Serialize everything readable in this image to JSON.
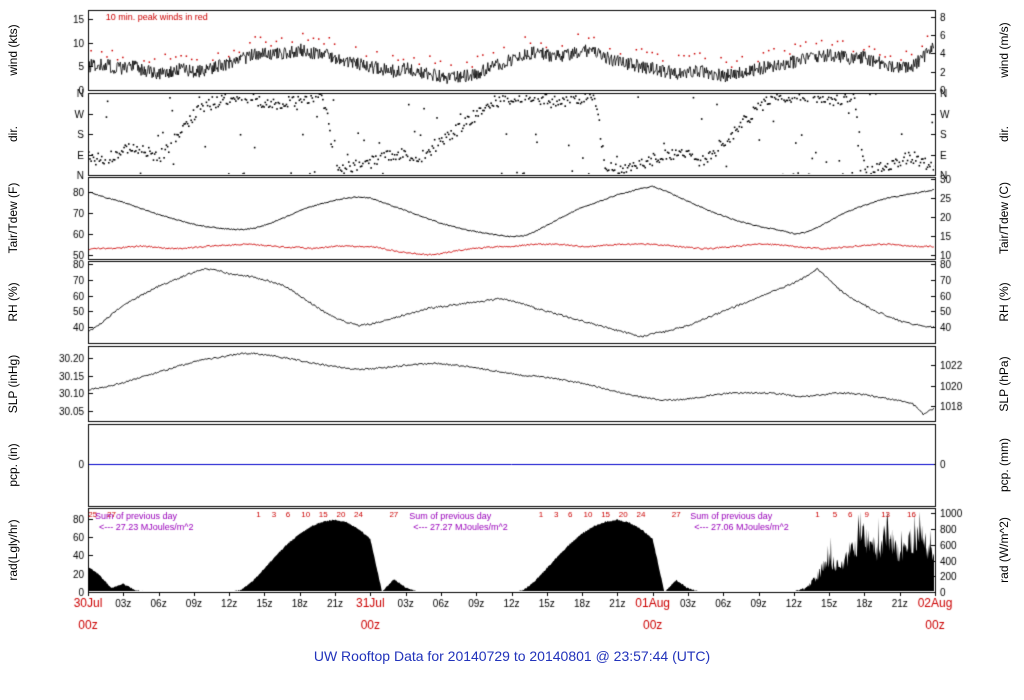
{
  "title": "UW Rooftop Data for 20140729  to  20140801 @ 23:57:44  (UTC)",
  "chart_data": {
    "type": "line",
    "x_unit": "hours since 30Jul 00z (UTC)",
    "x_range_hours": [
      0,
      72
    ],
    "hour_tick_labels": [
      "03z",
      "06z",
      "09z",
      "12z",
      "15z",
      "18z",
      "21z"
    ],
    "date_labels": [
      {
        "t": 0,
        "date": "30Jul",
        "z": "00z"
      },
      {
        "t": 24,
        "date": "31Jul",
        "z": "00z"
      },
      {
        "t": 48,
        "date": "01Aug",
        "z": "00z"
      },
      {
        "t": 72,
        "date": "02Aug",
        "z": "00z"
      }
    ],
    "panels": [
      {
        "id": "wind",
        "left_label": "wind (kts)",
        "right_label": "wind (m/s)",
        "range": [
          0,
          17
        ],
        "left_ticks": [
          {
            "v": 0,
            "label": "0"
          },
          {
            "v": 5,
            "label": "5"
          },
          {
            "v": 10,
            "label": "10"
          },
          {
            "v": 15,
            "label": "15"
          }
        ],
        "right_ticks": [
          {
            "v": 0,
            "label": "0"
          },
          {
            "v": 3.89,
            "label": "2"
          },
          {
            "v": 7.78,
            "label": "4"
          },
          {
            "v": 11.66,
            "label": "6"
          },
          {
            "v": 15.55,
            "label": "8"
          }
        ]
      },
      {
        "id": "dir",
        "left_label": "dir.",
        "right_label": "dir.",
        "range": [
          0,
          360
        ],
        "left_ticks": [
          {
            "v": 0,
            "label": "N"
          },
          {
            "v": 90,
            "label": "E"
          },
          {
            "v": 180,
            "label": "S"
          },
          {
            "v": 270,
            "label": "W"
          },
          {
            "v": 360,
            "label": "N"
          }
        ],
        "right_ticks": [
          {
            "v": 0,
            "label": "N"
          },
          {
            "v": 90,
            "label": "E"
          },
          {
            "v": 180,
            "label": "S"
          },
          {
            "v": 270,
            "label": "W"
          },
          {
            "v": 360,
            "label": "N"
          }
        ]
      },
      {
        "id": "temp",
        "left_label": "Tair/Tdew (F)",
        "right_label": "Tair/Tdew (C)",
        "range": [
          48,
          87
        ],
        "left_ticks": [
          {
            "v": 50,
            "label": "50"
          },
          {
            "v": 60,
            "label": "60"
          },
          {
            "v": 70,
            "label": "70"
          },
          {
            "v": 80,
            "label": "80"
          }
        ],
        "right_ticks": [
          {
            "v": 50,
            "label": "10"
          },
          {
            "v": 59,
            "label": "15"
          },
          {
            "v": 68,
            "label": "20"
          },
          {
            "v": 77,
            "label": "25"
          },
          {
            "v": 86,
            "label": "30"
          }
        ]
      },
      {
        "id": "rh",
        "left_label": "RH (%)",
        "right_label": "RH (%)",
        "range": [
          30,
          82
        ],
        "left_ticks": [
          {
            "v": 40,
            "label": "40"
          },
          {
            "v": 50,
            "label": "50"
          },
          {
            "v": 60,
            "label": "60"
          },
          {
            "v": 70,
            "label": "70"
          },
          {
            "v": 80,
            "label": "80"
          }
        ],
        "right_ticks": [
          {
            "v": 40,
            "label": "40"
          },
          {
            "v": 50,
            "label": "50"
          },
          {
            "v": 60,
            "label": "60"
          },
          {
            "v": 70,
            "label": "70"
          },
          {
            "v": 80,
            "label": "80"
          }
        ]
      },
      {
        "id": "slp",
        "left_label": "SLP (inHg)",
        "right_label": "SLP (hPa)",
        "range": [
          30.02,
          30.235
        ],
        "left_ticks": [
          {
            "v": 30.05,
            "label": "30.05"
          },
          {
            "v": 30.1,
            "label": "30.10"
          },
          {
            "v": 30.15,
            "label": "30.15"
          },
          {
            "v": 30.2,
            "label": "30.20"
          }
        ],
        "right_ticks": [
          {
            "v": 30.062,
            "label": "1018"
          },
          {
            "v": 30.121,
            "label": "1020"
          },
          {
            "v": 30.18,
            "label": "1022"
          }
        ]
      },
      {
        "id": "pcp",
        "left_label": "pcp. (in)",
        "right_label": "pcp. (mm)",
        "range": [
          -1.05,
          1
        ],
        "left_ticks": [
          {
            "v": 0,
            "label": "0"
          }
        ],
        "right_ticks": [
          {
            "v": 0,
            "label": "0"
          }
        ]
      },
      {
        "id": "rad",
        "left_label": "rad(Lgly/hr)",
        "right_label": "rad (W/m^2)",
        "range": [
          0,
          92
        ],
        "left_ticks": [
          {
            "v": 0,
            "label": "0"
          },
          {
            "v": 20,
            "label": "20"
          },
          {
            "v": 40,
            "label": "40"
          },
          {
            "v": 60,
            "label": "60"
          },
          {
            "v": 80,
            "label": "80"
          }
        ],
        "right_ticks": [
          {
            "v": 0,
            "label": "0"
          },
          {
            "v": 17.2,
            "label": "200"
          },
          {
            "v": 34.4,
            "label": "400"
          },
          {
            "v": 51.6,
            "label": "600"
          },
          {
            "v": 68.8,
            "label": "800"
          },
          {
            "v": 86,
            "label": "1000"
          }
        ]
      }
    ],
    "series": {
      "wind_note": "10 min. peak winds in red",
      "wind_kts_hourly": [
        5,
        5.5,
        5,
        4.5,
        5,
        4,
        3.5,
        4,
        4.5,
        4,
        4,
        5,
        5.5,
        6.5,
        7.5,
        8,
        7.5,
        8,
        8.5,
        8,
        7.5,
        7,
        6,
        5.5,
        5,
        4.5,
        4,
        4.5,
        4,
        3.5,
        3,
        2.5,
        3,
        3.5,
        4.5,
        5.5,
        6.5,
        7.5,
        8,
        7.5,
        7,
        7.5,
        8.5,
        8,
        7,
        6,
        5.5,
        5,
        4.5,
        4,
        3.5,
        4,
        4,
        3.5,
        3,
        3.5,
        4,
        4.5,
        5,
        5.5,
        6,
        6.5,
        7,
        7.5,
        7,
        6.5,
        7,
        6,
        5,
        4.5,
        5,
        7,
        9.5
      ],
      "wind_dir_deg_hourly": [
        80,
        70,
        90,
        110,
        120,
        100,
        80,
        140,
        220,
        270,
        310,
        330,
        345,
        350,
        340,
        320,
        310,
        320,
        335,
        350,
        355,
        20,
        35,
        50,
        60,
        80,
        100,
        90,
        70,
        110,
        150,
        190,
        230,
        270,
        310,
        335,
        345,
        350,
        340,
        330,
        320,
        335,
        345,
        355,
        15,
        30,
        45,
        60,
        70,
        90,
        105,
        85,
        65,
        100,
        150,
        200,
        250,
        300,
        330,
        340,
        350,
        345,
        335,
        330,
        340,
        350,
        10,
        25,
        45,
        65,
        85,
        60,
        40
      ],
      "tair_f_hourly": [
        80,
        78,
        76.5,
        75,
        73,
        71,
        69,
        67.5,
        66,
        64.5,
        63.5,
        62.8,
        62.2,
        62,
        62.5,
        64,
        66,
        68.5,
        71,
        73,
        74.5,
        76,
        77,
        77.5,
        77,
        75,
        73,
        71,
        69,
        67,
        65,
        63.5,
        62,
        61,
        60,
        59.2,
        58.6,
        59,
        61,
        64,
        67,
        70,
        72.5,
        74.5,
        76.5,
        78.5,
        80,
        81.5,
        82.5,
        80.5,
        78,
        75.5,
        73,
        70.5,
        68.5,
        66.5,
        65,
        63.5,
        62.5,
        61.5,
        60,
        60.5,
        63,
        66,
        69,
        71.5,
        73.5,
        75.5,
        77,
        78,
        79,
        80,
        81
      ],
      "tdew_f_hourly": [
        52.5,
        53,
        53,
        53.5,
        54,
        54,
        53.5,
        53,
        53,
        53.5,
        54,
        54.5,
        54.5,
        55,
        55,
        54.5,
        54,
        53.5,
        53.5,
        53,
        53.5,
        54,
        54,
        54,
        54,
        53,
        52,
        51,
        50.5,
        50,
        50.5,
        51.5,
        52.5,
        53,
        53.5,
        54,
        54,
        54.5,
        55,
        55,
        55,
        54.5,
        54,
        54,
        54.5,
        55,
        55,
        55,
        55,
        54.5,
        54,
        53.5,
        53,
        53,
        53.5,
        54,
        54.5,
        55,
        55,
        54.5,
        54,
        53.5,
        53,
        53,
        53.5,
        54,
        54.5,
        55,
        55,
        54.5,
        54,
        54,
        54
      ],
      "rh_pct_hourly": [
        37,
        42,
        48,
        54,
        58,
        62,
        66,
        69,
        72,
        75,
        77,
        76,
        74,
        73,
        72,
        70,
        68,
        65,
        60,
        55,
        50,
        46,
        43,
        41,
        42,
        44,
        46,
        48,
        50,
        52,
        53,
        54,
        55,
        56,
        57,
        58,
        57,
        55,
        52,
        50,
        48,
        46,
        44,
        42,
        40,
        38,
        36,
        34,
        36,
        37,
        39,
        41,
        44,
        47,
        50,
        53,
        56,
        59,
        62,
        65,
        68,
        72,
        77,
        70,
        63,
        58,
        54,
        50,
        47,
        44,
        42,
        41,
        40
      ],
      "slp_inhg_hourly": [
        30.11,
        30.115,
        30.122,
        30.13,
        30.14,
        30.15,
        30.16,
        30.17,
        30.18,
        30.19,
        30.196,
        30.202,
        30.208,
        30.213,
        30.214,
        30.21,
        30.205,
        30.2,
        30.193,
        30.187,
        30.181,
        30.176,
        30.171,
        30.167,
        30.17,
        30.172,
        30.176,
        30.18,
        30.182,
        30.185,
        30.184,
        30.181,
        30.177,
        30.172,
        30.167,
        30.161,
        30.156,
        30.151,
        30.149,
        30.145,
        30.14,
        30.134,
        30.128,
        30.12,
        30.111,
        30.102,
        30.095,
        30.089,
        30.084,
        30.08,
        30.08,
        30.084,
        30.089,
        30.094,
        30.098,
        30.1,
        30.101,
        30.101,
        30.1,
        30.097,
        30.092,
        30.09,
        30.093,
        30.098,
        30.1,
        30.099,
        30.095,
        30.09,
        30.084,
        30.078,
        30.072,
        30.04,
        30.058
      ],
      "pcp_in": 0,
      "rad_lyhr_hourly": [
        28,
        18,
        4,
        9,
        2,
        0,
        0,
        0,
        0,
        0,
        0,
        0,
        0,
        2,
        12,
        26,
        40,
        53,
        64,
        72,
        77,
        79,
        76,
        69,
        58,
        0,
        14,
        5,
        0,
        0,
        0,
        0,
        0,
        0,
        0,
        0,
        0,
        2,
        12,
        26,
        40,
        53,
        64,
        72,
        77,
        79,
        76,
        69,
        58,
        0,
        13,
        4,
        0,
        0,
        0,
        0,
        0,
        0,
        0,
        0,
        0,
        5,
        22,
        45,
        35,
        62,
        80,
        58,
        84,
        48,
        72,
        76,
        40
      ]
    },
    "rad_cum_ticks": [
      {
        "t": 0.4,
        "label": "25"
      },
      {
        "t": 2.0,
        "label": "27"
      },
      {
        "t": 14.5,
        "label": "1"
      },
      {
        "t": 15.8,
        "label": "3"
      },
      {
        "t": 17.0,
        "label": "6"
      },
      {
        "t": 18.5,
        "label": "10"
      },
      {
        "t": 20.0,
        "label": "15"
      },
      {
        "t": 21.5,
        "label": "20"
      },
      {
        "t": 23.0,
        "label": "24"
      },
      {
        "t": 26.0,
        "label": "27"
      },
      {
        "t": 38.5,
        "label": "1"
      },
      {
        "t": 39.8,
        "label": "3"
      },
      {
        "t": 41.0,
        "label": "6"
      },
      {
        "t": 42.5,
        "label": "10"
      },
      {
        "t": 44.0,
        "label": "15"
      },
      {
        "t": 45.5,
        "label": "20"
      },
      {
        "t": 47.0,
        "label": "24"
      },
      {
        "t": 50.0,
        "label": "27"
      },
      {
        "t": 62.0,
        "label": "1"
      },
      {
        "t": 63.5,
        "label": "5"
      },
      {
        "t": 64.8,
        "label": "6"
      },
      {
        "t": 66.2,
        "label": "9"
      },
      {
        "t": 67.8,
        "label": "13"
      },
      {
        "t": 70.0,
        "label": "16"
      }
    ],
    "rad_sum_annotations": {
      "label": "Sum of previous day",
      "arrow": "<---",
      "unit": "MJoules/m^2",
      "items": [
        {
          "t": 0.6,
          "value": "27.23"
        },
        {
          "t": 27.3,
          "value": "27.27"
        },
        {
          "t": 51.2,
          "value": "27.06"
        }
      ]
    },
    "colors": {
      "series": "#000000",
      "red": "#cc0000",
      "title_blue": "#2233bb",
      "pcp_line": "#0000cc",
      "purple": "#9900bb"
    }
  }
}
